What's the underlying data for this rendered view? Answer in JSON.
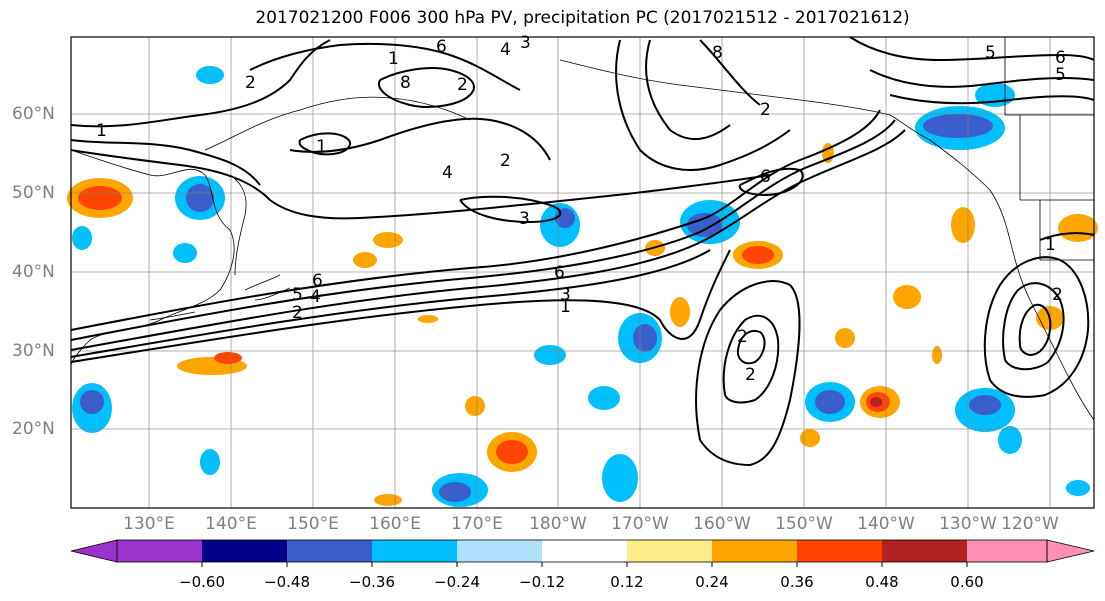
{
  "title": "2017021200 F006 300 hPa PV, precipitation PC (2017021512 - 2017021612)",
  "lat_labels": [
    "60°N",
    "50°N",
    "40°N",
    "30°N",
    "20°N"
  ],
  "lon_labels": [
    "130°E",
    "140°E",
    "150°E",
    "160°E",
    "170°E",
    "180°W",
    "170°W",
    "160°W",
    "150°W",
    "140°W",
    "130°W",
    "120°W"
  ],
  "colorbar": {
    "ticks": [
      "−0.60",
      "−0.48",
      "−0.36",
      "−0.24",
      "−0.12",
      "0.12",
      "0.24",
      "0.36",
      "0.48",
      "0.60"
    ],
    "colors": [
      "#9933cc",
      "#00008b",
      "#3a5fcd",
      "#00bfff",
      "#b0e2ff",
      "#ffffff",
      "#ffec8b",
      "#ffa500",
      "#ff4500",
      "#b22222",
      "#ff8fb5"
    ]
  },
  "contour_labels": [
    "1",
    "1",
    "2",
    "3",
    "4",
    "6",
    "8",
    "6",
    "4",
    "2",
    "1",
    "2",
    "3",
    "4",
    "5",
    "6",
    "1",
    "2",
    "3",
    "5",
    "6",
    "8",
    "2",
    "5",
    "6",
    "2",
    "1",
    "2",
    "2"
  ],
  "colors": {
    "frame": "#000000",
    "grid": "#808080",
    "axis_label": "#7f7f7f",
    "contour": "#000000"
  }
}
